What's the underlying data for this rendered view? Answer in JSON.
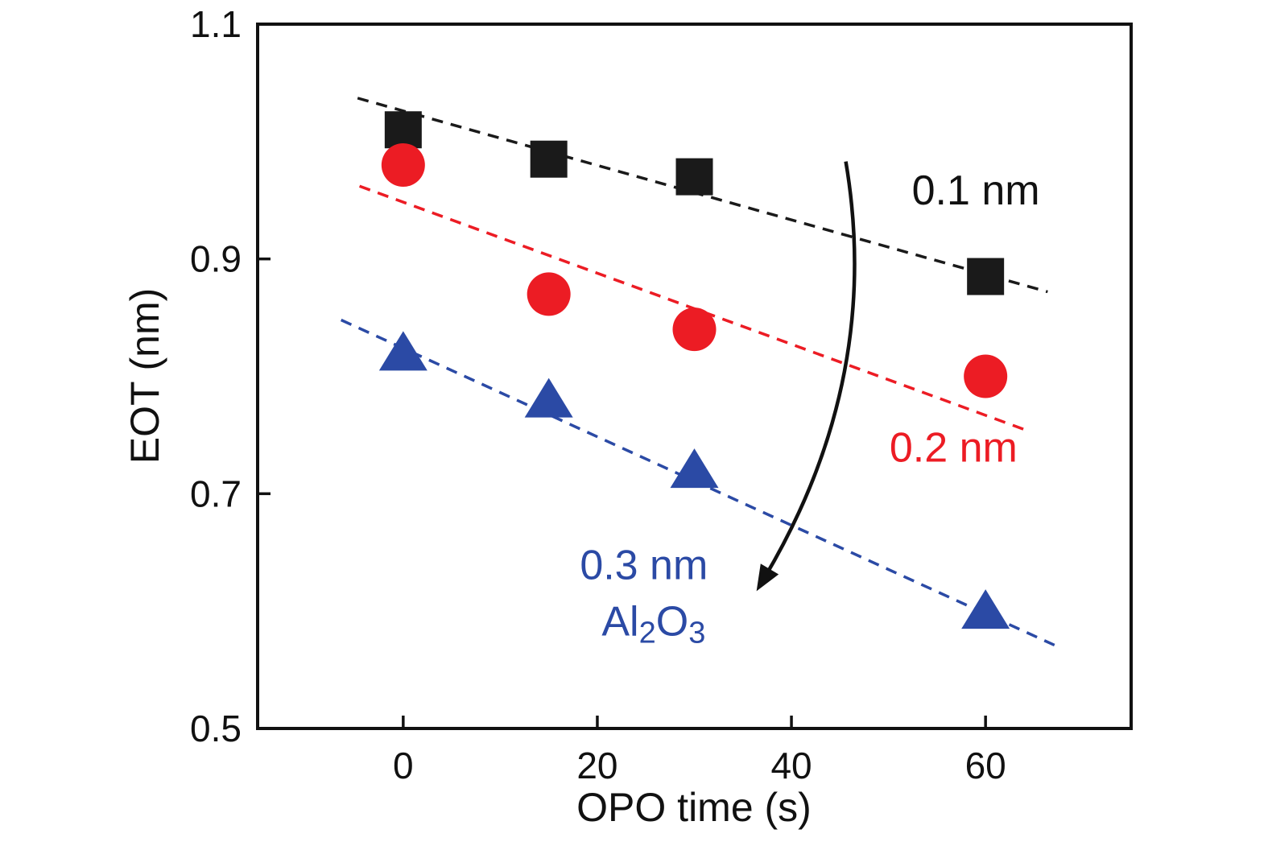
{
  "chart_data": {
    "type": "scatter",
    "title": "",
    "xlabel": "OPO time (s)",
    "ylabel": "EOT (nm)",
    "xlim": [
      -15,
      75
    ],
    "ylim": [
      0.5,
      1.1
    ],
    "xticks": [
      0,
      20,
      40,
      60
    ],
    "yticks": [
      0.5,
      0.7,
      0.9,
      1.1
    ],
    "grid": false,
    "legend_position": "inline-annotations",
    "series": [
      {
        "name": "0.1 nm",
        "marker": "square",
        "color": "#1a1a1a",
        "x": [
          0,
          15,
          30,
          60
        ],
        "y": [
          1.01,
          0.985,
          0.97,
          0.885
        ],
        "trend": {
          "x1": -4.7,
          "y1": 1.037,
          "x2": 66.4,
          "y2": 0.872
        }
      },
      {
        "name": "0.2 nm",
        "marker": "circle",
        "color": "#ec1c24",
        "x": [
          0,
          15,
          30,
          60
        ],
        "y": [
          0.98,
          0.87,
          0.84,
          0.8
        ],
        "trend": {
          "x1": -4.5,
          "y1": 0.962,
          "x2": 63.9,
          "y2": 0.755
        }
      },
      {
        "name": "0.3 nm",
        "marker": "triangle",
        "color": "#2b4aa5",
        "x": [
          0,
          15,
          30,
          60
        ],
        "y": [
          0.82,
          0.78,
          0.72,
          0.6
        ],
        "trend": {
          "x1": -6.4,
          "y1": 0.848,
          "x2": 67.1,
          "y2": 0.571
        }
      }
    ],
    "annotations": [
      {
        "text": "0.1 nm",
        "color": "#111111",
        "x": 59.0,
        "y": 0.958
      },
      {
        "text": "0.2 nm",
        "color": "#ec1c24",
        "x": 56.7,
        "y": 0.739
      },
      {
        "text": "0.3 nm",
        "color": "#2b4aa5",
        "x": 24.8,
        "y": 0.639
      },
      {
        "text": "Al₂O₃",
        "color": "#2b4aa5",
        "x": 25.8,
        "y": 0.591
      }
    ],
    "arrow": {
      "from": {
        "x": 45.6,
        "y": 0.983
      },
      "control": {
        "x": 49.4,
        "y": 0.798
      },
      "to": {
        "x": 36.4,
        "y": 0.617
      }
    }
  }
}
